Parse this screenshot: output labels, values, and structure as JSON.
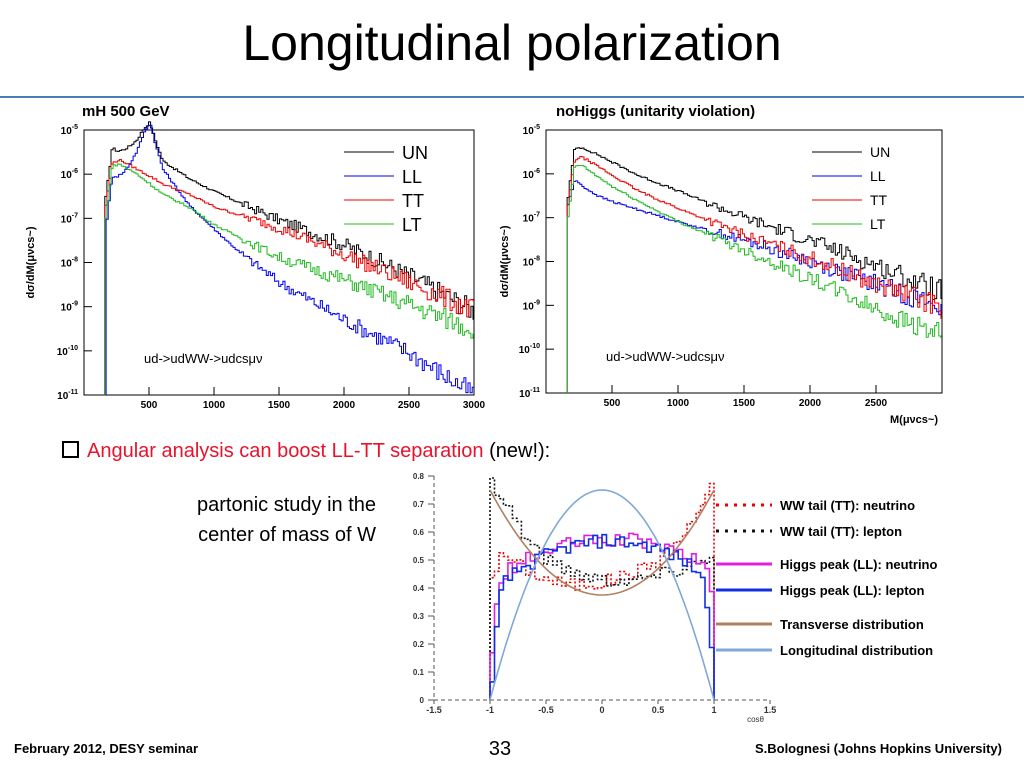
{
  "slide": {
    "title": "Longitudinal polarization",
    "bullet_prefix": "Angular analysis can boost LL-TT separation",
    "bullet_suffix": " (new!):",
    "partonic_text": "partonic study in the center of mass of W",
    "footer_left": "February 2012, DESY seminar",
    "page_number": "33",
    "footer_right": "S.Bolognesi (Johns Hopkins University)"
  },
  "colors": {
    "UN": "#000000",
    "LL": "#0000ee",
    "TT": "#ee0000",
    "LT": "#22bb22",
    "accent_rule": "#4a7ebb",
    "bullet_red": "#e8132b"
  },
  "chart_data": [
    {
      "type": "line",
      "title": "mH 500 GeV",
      "ylabel": "dσ/dM(μνcs~)",
      "xlabel": "",
      "y_log": true,
      "xlim": [
        0,
        3000
      ],
      "ylim": [
        1e-11,
        1e-05
      ],
      "x_ticks": [
        "500",
        "1000",
        "1500",
        "2000",
        "2500",
        "3000"
      ],
      "y_ticks": [
        "10-5",
        "10-6",
        "10-7",
        "10-8",
        "10-9",
        "10-10",
        "10-11"
      ],
      "legend": [
        "UN",
        "LL",
        "TT",
        "LT"
      ],
      "legend_position": "top-right",
      "annotation": "ud->udWW->udcsμν",
      "series": [
        {
          "name": "UN",
          "x": [
            160,
            210,
            250,
            300,
            350,
            400,
            450,
            500,
            550,
            600,
            800,
            1000,
            1500,
            2000,
            2500,
            3000
          ],
          "y": [
            3e-07,
            4e-06,
            3.3e-06,
            3.6e-06,
            4.4e-06,
            6e-06,
            1.05e-05,
            1.5e-05,
            5e-06,
            2e-06,
            8e-07,
            4e-07,
            9e-08,
            2.5e-08,
            5e-09,
            8e-10
          ]
        },
        {
          "name": "LL",
          "x": [
            170,
            210,
            250,
            300,
            350,
            400,
            450,
            500,
            550,
            600,
            800,
            1000,
            1200,
            1500,
            2000,
            2500,
            3000
          ],
          "y": [
            1e-07,
            9e-07,
            9e-07,
            1.1e-06,
            1.8e-06,
            3.3e-06,
            8e-06,
            1.5e-05,
            4e-06,
            1.3e-06,
            2e-07,
            5.5e-08,
            1.6e-08,
            3.5e-09,
            5e-10,
            9e-11,
            1e-11
          ]
        },
        {
          "name": "TT",
          "x": [
            160,
            210,
            260,
            300,
            400,
            500,
            600,
            800,
            1000,
            1500,
            2000,
            2500,
            3000
          ],
          "y": [
            2e-07,
            1.8e-06,
            2.1e-06,
            1.9e-06,
            1.3e-06,
            9e-07,
            6e-07,
            3.5e-07,
            1.8e-07,
            6e-08,
            1.5e-08,
            3.5e-09,
            8e-10
          ]
        },
        {
          "name": "LT",
          "x": [
            160,
            210,
            260,
            300,
            400,
            500,
            600,
            800,
            1000,
            1500,
            2000,
            2500,
            3000
          ],
          "y": [
            1e-07,
            1.5e-06,
            1.7e-06,
            1.5e-06,
            1e-06,
            6e-07,
            3.5e-07,
            1.8e-07,
            7e-08,
            1.3e-08,
            4e-09,
            1.1e-09,
            3e-10
          ]
        }
      ]
    },
    {
      "type": "line",
      "title": "noHiggs (unitarity violation)",
      "ylabel": "dσ/dM(μνcs~)",
      "xlabel": "M(μνcs~)",
      "y_log": true,
      "xlim": [
        0,
        3000
      ],
      "ylim": [
        1e-11,
        1e-05
      ],
      "x_ticks": [
        "500",
        "1000",
        "1500",
        "2000",
        "2500"
      ],
      "y_ticks": [
        "10-5",
        "10-6",
        "10-7",
        "10-8",
        "10-9",
        "10-10",
        "10-11"
      ],
      "legend": [
        "UN",
        "LL",
        "TT",
        "LT"
      ],
      "legend_position": "top-right",
      "annotation": "ud->udWW->udcsμν",
      "series": [
        {
          "name": "UN",
          "x": [
            160,
            210,
            260,
            300,
            400,
            500,
            700,
            1000,
            1500,
            2000,
            2500,
            3000
          ],
          "y": [
            3e-07,
            3.8e-06,
            4e-06,
            3.6e-06,
            2.6e-06,
            1.8e-06,
            9e-07,
            4e-07,
            1e-07,
            3e-08,
            8e-09,
            2e-09
          ]
        },
        {
          "name": "LL",
          "x": [
            160,
            210,
            250,
            300,
            400,
            500,
            700,
            1000,
            1500,
            2000,
            2500,
            3000
          ],
          "y": [
            2e-07,
            7e-07,
            6e-07,
            4.5e-07,
            3e-07,
            2.3e-07,
            1.5e-07,
            8e-08,
            3e-08,
            1e-08,
            3e-09,
            9e-10
          ]
        },
        {
          "name": "TT",
          "x": [
            160,
            210,
            260,
            300,
            400,
            500,
            700,
            1000,
            1500,
            2000,
            2500,
            3000
          ],
          "y": [
            2e-07,
            2.1e-06,
            2.4e-06,
            2.1e-06,
            1.4e-06,
            9e-07,
            4e-07,
            1.6e-07,
            4e-08,
            1.2e-08,
            3e-09,
            9e-10
          ]
        },
        {
          "name": "LT",
          "x": [
            160,
            210,
            260,
            300,
            400,
            500,
            700,
            1000,
            1500,
            2000,
            2500,
            3000
          ],
          "y": [
            1e-07,
            1.5e-06,
            1.6e-06,
            1.3e-06,
            8e-07,
            5e-07,
            2.3e-07,
            8e-08,
            1.8e-08,
            4e-09,
            8e-10,
            2e-10
          ]
        }
      ]
    },
    {
      "type": "line",
      "title": "",
      "xlabel": "cosθ",
      "ylabel": "",
      "xlim": [
        -1.5,
        1.5
      ],
      "ylim": [
        0,
        0.8
      ],
      "x_ticks": [
        "-1.5",
        "-1",
        "-0.5",
        "0",
        "0.5",
        "1",
        "1.5"
      ],
      "y_ticks": [
        "0",
        "0.1",
        "0.2",
        "0.3",
        "0.4",
        "0.5",
        "0.6",
        "0.7",
        "0.8"
      ],
      "legend": [
        "WW tail (TT): neutrino",
        "WW tail (TT): lepton",
        "Higgs peak (LL): neutrino",
        "Higgs peak (LL): lepton",
        "Transverse distribution",
        "Longitudinal distribution"
      ],
      "legend_position": "right",
      "series": [
        {
          "name": "WW tail (TT): neutrino",
          "x": [
            -1,
            -0.9,
            -0.7,
            -0.5,
            -0.3,
            0,
            0.3,
            0.5,
            0.7,
            0.8,
            0.9,
            1
          ],
          "y": [
            0.45,
            0.52,
            0.47,
            0.43,
            0.41,
            0.42,
            0.46,
            0.5,
            0.58,
            0.64,
            0.72,
            0.8
          ]
        },
        {
          "name": "WW tail (TT): lepton",
          "x": [
            -1,
            -0.9,
            -0.8,
            -0.7,
            -0.5,
            -0.3,
            0,
            0.3,
            0.5,
            0.7,
            0.9,
            1
          ],
          "y": [
            0.78,
            0.72,
            0.66,
            0.58,
            0.5,
            0.46,
            0.43,
            0.43,
            0.45,
            0.47,
            0.5,
            0.55
          ]
        },
        {
          "name": "Higgs peak (LL): neutrino",
          "x": [
            -1,
            -0.95,
            -0.9,
            -0.7,
            -0.5,
            -0.3,
            0,
            0.3,
            0.5,
            0.7,
            0.9,
            0.95,
            1
          ],
          "y": [
            0.18,
            0.36,
            0.45,
            0.5,
            0.53,
            0.56,
            0.57,
            0.57,
            0.55,
            0.52,
            0.48,
            0.43,
            0.2
          ]
        },
        {
          "name": "Higgs peak (LL): lepton",
          "x": [
            -1,
            -0.95,
            -0.9,
            -0.7,
            -0.5,
            -0.3,
            0,
            0.3,
            0.5,
            0.7,
            0.85,
            0.9,
            0.95,
            1
          ],
          "y": [
            0.05,
            0.3,
            0.42,
            0.48,
            0.52,
            0.55,
            0.57,
            0.56,
            0.54,
            0.5,
            0.46,
            0.4,
            0.25,
            0.05
          ]
        },
        {
          "name": "Transverse distribution",
          "x": [
            -1,
            -0.75,
            -0.5,
            -0.25,
            0,
            0.25,
            0.5,
            0.75,
            1
          ],
          "y": [
            0.75,
            0.58,
            0.47,
            0.4,
            0.375,
            0.4,
            0.47,
            0.58,
            0.75
          ]
        },
        {
          "name": "Longitudinal distribution",
          "x": [
            -1,
            -0.75,
            -0.5,
            -0.25,
            0,
            0.25,
            0.5,
            0.75,
            1
          ],
          "y": [
            0,
            0.33,
            0.56,
            0.7,
            0.75,
            0.7,
            0.56,
            0.33,
            0
          ]
        }
      ]
    }
  ]
}
